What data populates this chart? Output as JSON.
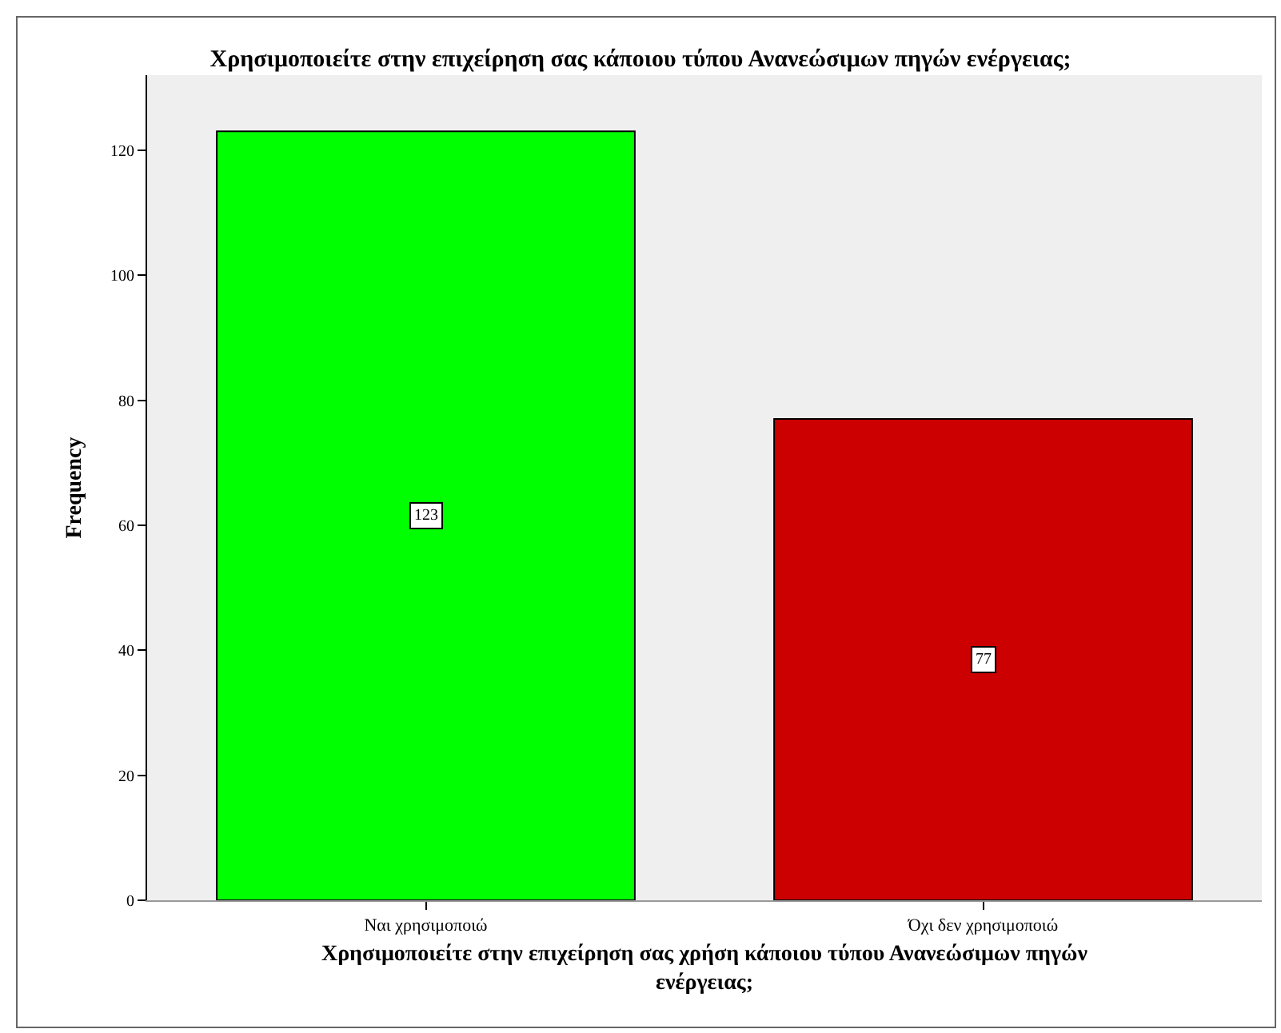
{
  "chart_data": {
    "type": "bar",
    "title": "Χρησιμοποιείτε στην επιχείρηση σας κάποιου τύπου Ανανεώσιμων πηγών ενέργειας;",
    "xlabel": "Χρησιμοποιείτε στην επιχείρηση σας χρήση κάποιου τύπου Ανανεώσιμων πηγών ενέργειας;",
    "ylabel": "Frequency",
    "categories": [
      "Ναι χρησιμοποιώ",
      "Όχι δεν χρησιμοποιώ"
    ],
    "values": [
      123,
      77
    ],
    "colors": [
      "#00ff00",
      "#cc0000"
    ],
    "ylim": [
      0,
      132
    ],
    "yticks": [
      0,
      20,
      40,
      60,
      80,
      100,
      120
    ],
    "data_labels": true
  }
}
